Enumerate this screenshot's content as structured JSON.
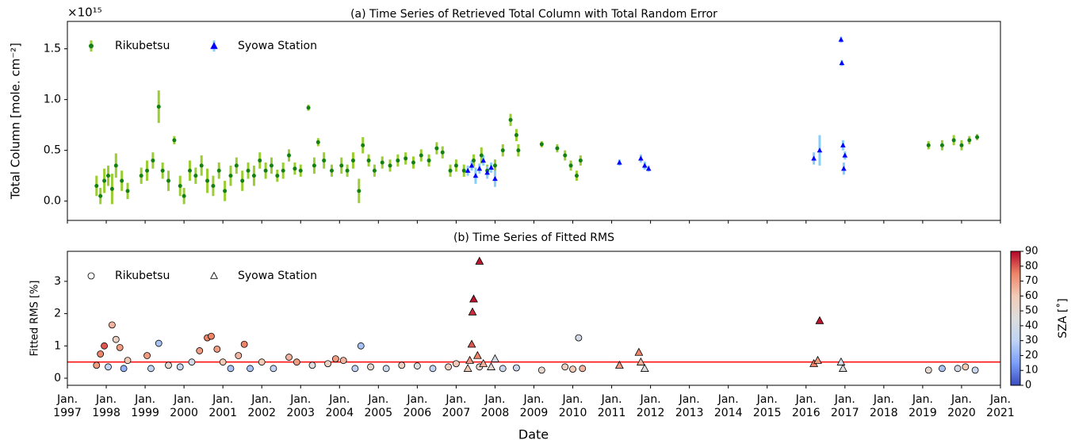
{
  "chart_data": [
    {
      "type": "scatter",
      "title": "(a) Time Series of Retrieved Total Column with Total Random Error",
      "y_label": "Total Column [mole. cm⁻²]",
      "y_multiplier": "×10¹⁵",
      "xlim": [
        1997,
        2021
      ],
      "xticks": [
        1997,
        1998,
        1999,
        2000,
        2001,
        2002,
        2003,
        2004,
        2005,
        2006,
        2007,
        2008,
        2009,
        2010,
        2011,
        2012,
        2013,
        2014,
        2015,
        2016,
        2017,
        2018,
        2019,
        2020,
        2021
      ],
      "ylim": [
        -0.19,
        1.77
      ],
      "yticks": [
        {
          "value": 0,
          "label": "0.0"
        },
        0.5,
        {
          "value": 1,
          "label": "1.0"
        },
        1.5
      ],
      "legend": "upper left",
      "series": [
        {
          "name": "Rikubetsu",
          "marker": "circle",
          "color": "#148014",
          "error_color": "#9acd32",
          "x": [
            1997.75,
            1997.85,
            1997.95,
            1998.05,
            1998.15,
            1998.25,
            1998.4,
            1998.55,
            1998.9,
            1999.05,
            1999.2,
            1999.35,
            1999.45,
            1999.6,
            1999.75,
            1999.9,
            2000.0,
            2000.15,
            2000.3,
            2000.45,
            2000.6,
            2000.75,
            2000.9,
            2001.05,
            2001.2,
            2001.35,
            2001.5,
            2001.65,
            2001.8,
            2001.95,
            2002.1,
            2002.25,
            2002.4,
            2002.55,
            2002.7,
            2002.85,
            2003.0,
            2003.2,
            2003.35,
            2003.45,
            2003.6,
            2003.8,
            2004.05,
            2004.2,
            2004.35,
            2004.5,
            2004.6,
            2004.75,
            2004.9,
            2005.1,
            2005.3,
            2005.5,
            2005.7,
            2005.9,
            2006.1,
            2006.3,
            2006.5,
            2006.65,
            2006.85,
            2007.0,
            2007.2,
            2007.45,
            2007.65,
            2007.8,
            2008.0,
            2008.2,
            2008.4,
            2008.55,
            2008.6,
            2009.2,
            2009.6,
            2009.8,
            2009.95,
            2010.1,
            2010.2,
            2019.15,
            2019.5,
            2019.8,
            2020.0,
            2020.2,
            2020.4
          ],
          "values": [
            0.15,
            0.05,
            0.2,
            0.25,
            0.12,
            0.35,
            0.2,
            0.1,
            0.25,
            0.3,
            0.4,
            0.93,
            0.3,
            0.2,
            0.6,
            0.15,
            0.05,
            0.3,
            0.25,
            0.35,
            0.2,
            0.15,
            0.3,
            0.1,
            0.25,
            0.35,
            0.2,
            0.3,
            0.25,
            0.4,
            0.3,
            0.35,
            0.25,
            0.3,
            0.45,
            0.32,
            0.3,
            0.92,
            0.35,
            0.58,
            0.4,
            0.3,
            0.35,
            0.3,
            0.4,
            0.1,
            0.55,
            0.4,
            0.3,
            0.38,
            0.35,
            0.4,
            0.42,
            0.38,
            0.45,
            0.4,
            0.52,
            0.48,
            0.3,
            0.35,
            0.3,
            0.4,
            0.45,
            0.3,
            0.35,
            0.5,
            0.8,
            0.65,
            0.5,
            0.56,
            0.52,
            0.45,
            0.35,
            0.25,
            0.4,
            0.55,
            0.55,
            0.6,
            0.55,
            0.6,
            0.63
          ],
          "errors": [
            0.1,
            0.08,
            0.12,
            0.1,
            0.15,
            0.12,
            0.1,
            0.08,
            0.08,
            0.1,
            0.08,
            0.16,
            0.08,
            0.1,
            0.04,
            0.1,
            0.08,
            0.1,
            0.08,
            0.1,
            0.12,
            0.1,
            0.08,
            0.1,
            0.1,
            0.08,
            0.1,
            0.08,
            0.1,
            0.08,
            0.08,
            0.08,
            0.06,
            0.08,
            0.06,
            0.06,
            0.06,
            0.03,
            0.08,
            0.04,
            0.08,
            0.06,
            0.08,
            0.06,
            0.08,
            0.12,
            0.08,
            0.06,
            0.06,
            0.06,
            0.06,
            0.06,
            0.06,
            0.06,
            0.06,
            0.06,
            0.06,
            0.06,
            0.06,
            0.06,
            0.06,
            0.06,
            0.08,
            0.06,
            0.06,
            0.06,
            0.06,
            0.06,
            0.06,
            0.03,
            0.04,
            0.05,
            0.05,
            0.05,
            0.05,
            0.04,
            0.05,
            0.05,
            0.05,
            0.04,
            0.03
          ]
        },
        {
          "name": "Syowa Station",
          "marker": "triangle",
          "color": "#0000ff",
          "error_color": "#87cefa",
          "x": [
            2007.3,
            2007.4,
            2007.5,
            2007.6,
            2007.7,
            2007.8,
            2007.9,
            2008.0,
            2011.2,
            2011.75,
            2011.85,
            2011.95,
            2016.2,
            2016.35,
            2016.9,
            2016.92,
            2016.95,
            2017.0,
            2016.97
          ],
          "values": [
            0.3,
            0.35,
            0.25,
            0.32,
            0.4,
            0.28,
            0.33,
            0.22,
            0.38,
            0.42,
            0.35,
            0.32,
            0.42,
            0.5,
            1.59,
            1.36,
            0.55,
            0.45,
            0.32
          ],
          "errors": [
            0.05,
            0.05,
            0.08,
            0.05,
            0.05,
            0.06,
            0.05,
            0.08,
            0.03,
            0.04,
            0.04,
            0.03,
            0.06,
            0.15,
            0.03,
            0.03,
            0.05,
            0.04,
            0.06
          ]
        }
      ]
    },
    {
      "type": "scatter",
      "title": "(b) Time Series of Fitted RMS",
      "x_label": "Date",
      "y_label": "Fitted RMS [%]",
      "xlim": [
        1997,
        2021
      ],
      "xticks": [
        {
          "value": 1997,
          "label": "Jan.\n1997"
        },
        {
          "value": 1998,
          "label": "Jan.\n1998"
        },
        {
          "value": 1999,
          "label": "Jan.\n1999"
        },
        {
          "value": 2000,
          "label": "Jan.\n2000"
        },
        {
          "value": 2001,
          "label": "Jan.\n2001"
        },
        {
          "value": 2002,
          "label": "Jan.\n2002"
        },
        {
          "value": 2003,
          "label": "Jan.\n2003"
        },
        {
          "value": 2004,
          "label": "Jan.\n2004"
        },
        {
          "value": 2005,
          "label": "Jan.\n2005"
        },
        {
          "value": 2006,
          "label": "Jan.\n2006"
        },
        {
          "value": 2007,
          "label": "Jan.\n2007"
        },
        {
          "value": 2008,
          "label": "Jan.\n2008"
        },
        {
          "value": 2009,
          "label": "Jan.\n2009"
        },
        {
          "value": 2010,
          "label": "Jan.\n2010"
        },
        {
          "value": 2011,
          "label": "Jan.\n2011"
        },
        {
          "value": 2012,
          "label": "Jan.\n2012"
        },
        {
          "value": 2013,
          "label": "Jan.\n2013"
        },
        {
          "value": 2014,
          "label": "Jan.\n2014"
        },
        {
          "value": 2015,
          "label": "Jan.\n2015"
        },
        {
          "value": 2016,
          "label": "Jan.\n2016"
        },
        {
          "value": 2017,
          "label": "Jan.\n2017"
        },
        {
          "value": 2018,
          "label": "Jan.\n2018"
        },
        {
          "value": 2019,
          "label": "Jan.\n2019"
        },
        {
          "value": 2020,
          "label": "Jan.\n2020"
        },
        {
          "value": 2021,
          "label": "Jan.\n2021"
        }
      ],
      "ylim": [
        -0.22,
        3.93
      ],
      "yticks": [
        0,
        1,
        2,
        3
      ],
      "reference_line": {
        "value": 0.5,
        "color": "#ff0000"
      },
      "legend": "upper left",
      "colormap": "coolwarm",
      "colorbar": {
        "label": "SZA [˚]",
        "lim": [
          0,
          90
        ],
        "ticks": [
          0,
          10,
          20,
          30,
          40,
          50,
          60,
          70,
          80,
          90
        ]
      },
      "series": [
        {
          "name": "Rikubetsu",
          "marker": "circle",
          "x": [
            1997.75,
            1997.85,
            1997.95,
            1998.05,
            1998.15,
            1998.25,
            1998.35,
            1998.45,
            1998.55,
            1999.05,
            1999.15,
            1999.35,
            1999.6,
            1999.9,
            2000.2,
            2000.4,
            2000.6,
            2000.7,
            2000.85,
            2001.0,
            2001.2,
            2001.4,
            2001.55,
            2001.7,
            2002.0,
            2002.3,
            2002.7,
            2002.9,
            2003.3,
            2003.7,
            2003.9,
            2004.1,
            2004.4,
            2004.55,
            2004.8,
            2005.2,
            2005.6,
            2006.0,
            2006.4,
            2006.8,
            2007.0,
            2007.6,
            2008.2,
            2008.55,
            2009.2,
            2009.8,
            2010.0,
            2010.15,
            2010.25,
            2019.15,
            2019.5,
            2019.9,
            2020.1,
            2020.35
          ],
          "values": [
            0.4,
            0.75,
            1.0,
            0.35,
            1.65,
            1.2,
            0.95,
            0.3,
            0.55,
            0.7,
            0.3,
            1.08,
            0.4,
            0.35,
            0.5,
            0.85,
            1.25,
            1.3,
            0.9,
            0.5,
            0.3,
            0.7,
            1.05,
            0.3,
            0.5,
            0.3,
            0.65,
            0.5,
            0.4,
            0.45,
            0.6,
            0.55,
            0.3,
            1.0,
            0.35,
            0.3,
            0.4,
            0.38,
            0.3,
            0.35,
            0.45,
            0.35,
            0.3,
            0.32,
            0.25,
            0.35,
            0.28,
            1.25,
            0.3,
            0.25,
            0.3,
            0.3,
            0.35,
            0.25
          ],
          "sza": [
            70,
            75,
            80,
            30,
            65,
            55,
            70,
            20,
            60,
            70,
            30,
            25,
            50,
            35,
            40,
            70,
            75,
            75,
            70,
            60,
            25,
            65,
            75,
            25,
            60,
            30,
            65,
            70,
            45,
            55,
            70,
            65,
            30,
            25,
            50,
            35,
            55,
            45,
            30,
            55,
            60,
            50,
            35,
            35,
            50,
            55,
            60,
            40,
            65,
            50,
            25,
            40,
            60,
            35
          ]
        },
        {
          "name": "Syowa Station",
          "marker": "triangle",
          "x": [
            2007.3,
            2007.35,
            2007.4,
            2007.42,
            2007.45,
            2007.55,
            2007.6,
            2007.7,
            2007.9,
            2008.0,
            2011.2,
            2011.7,
            2011.75,
            2011.85,
            2016.2,
            2016.3,
            2016.35,
            2016.9,
            2016.95
          ],
          "values": [
            0.3,
            0.55,
            1.05,
            2.05,
            2.45,
            0.7,
            3.62,
            0.45,
            0.35,
            0.6,
            0.4,
            0.8,
            0.5,
            0.3,
            0.45,
            0.55,
            1.78,
            0.5,
            0.3
          ],
          "sza": [
            60,
            70,
            80,
            85,
            88,
            75,
            88,
            65,
            50,
            40,
            70,
            75,
            65,
            45,
            75,
            70,
            88,
            40,
            45
          ]
        }
      ]
    }
  ]
}
